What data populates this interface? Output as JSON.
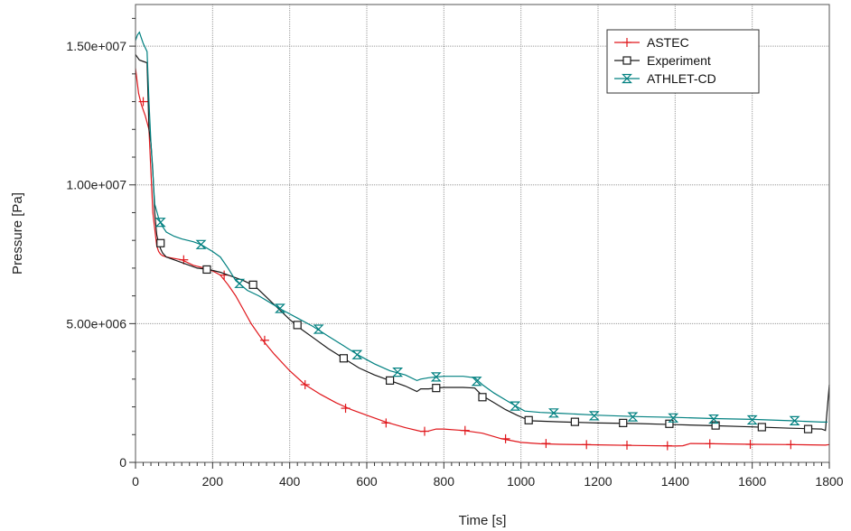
{
  "chart_data": {
    "type": "line",
    "xlabel": "Time [s]",
    "ylabel": "Pressure [Pa]",
    "xlim": [
      0,
      1800
    ],
    "ylim": [
      0,
      16500000
    ],
    "x_ticks": [
      0,
      200,
      400,
      600,
      800,
      1000,
      1200,
      1400,
      1600,
      1800
    ],
    "x_tick_labels": [
      "0",
      "200",
      "400",
      "600",
      "800",
      "1000",
      "1200",
      "1400",
      "1600",
      "1800"
    ],
    "y_ticks": [
      0,
      5000000,
      10000000,
      15000000
    ],
    "y_tick_labels": [
      "0",
      "5.00e+006",
      "1.00e+007",
      "1.50e+007"
    ],
    "grid": true,
    "legend_position": "top-right",
    "series": [
      {
        "name": "ASTEC",
        "color": "#e0161b",
        "marker": "plus",
        "x": [
          0,
          8,
          15,
          25,
          35,
          45,
          55,
          60,
          65,
          70,
          80,
          100,
          120,
          150,
          180,
          200,
          220,
          240,
          260,
          280,
          300,
          330,
          360,
          400,
          440,
          480,
          520,
          560,
          600,
          650,
          700,
          740,
          760,
          780,
          800,
          850,
          900,
          950,
          1000,
          1050,
          1100,
          1200,
          1300,
          1400,
          1420,
          1440,
          1500,
          1600,
          1700,
          1790,
          1800
        ],
        "y": [
          14200000,
          13300000,
          12900000,
          12500000,
          12000000,
          9000000,
          7800000,
          7600000,
          7500000,
          7450000,
          7400000,
          7350000,
          7300000,
          7100000,
          7000000,
          6900000,
          6750000,
          6400000,
          6000000,
          5500000,
          5000000,
          4400000,
          3900000,
          3300000,
          2800000,
          2450000,
          2150000,
          1900000,
          1700000,
          1450000,
          1250000,
          1120000,
          1130000,
          1200000,
          1200000,
          1150000,
          1050000,
          850000,
          720000,
          670000,
          650000,
          630000,
          610000,
          590000,
          600000,
          680000,
          670000,
          650000,
          640000,
          620000,
          640000
        ],
        "markers_x": [
          20,
          125,
          230,
          335,
          440,
          545,
          650,
          750,
          855,
          960,
          1065,
          1170,
          1275,
          1380,
          1490,
          1595,
          1700
        ],
        "markers_y": [
          13000000,
          7300000,
          6750000,
          4400000,
          2800000,
          1950000,
          1420000,
          1120000,
          1150000,
          850000,
          680000,
          640000,
          620000,
          600000,
          670000,
          650000,
          640000
        ]
      },
      {
        "name": "Experiment",
        "color": "#1a1a1a",
        "marker": "square",
        "x": [
          0,
          5,
          10,
          20,
          30,
          35,
          40,
          45,
          50,
          55,
          60,
          65,
          70,
          80,
          100,
          130,
          160,
          190,
          220,
          250,
          280,
          310,
          340,
          370,
          400,
          430,
          460,
          500,
          540,
          580,
          620,
          660,
          700,
          730,
          740,
          760,
          780,
          800,
          850,
          880,
          900,
          930,
          960,
          990,
          1010,
          1020,
          1100,
          1200,
          1300,
          1400,
          1500,
          1600,
          1700,
          1780,
          1790,
          1795,
          1800
        ],
        "y": [
          14700000,
          14600000,
          14500000,
          14450000,
          14400000,
          12000000,
          11500000,
          10500000,
          9000000,
          8200000,
          7900000,
          7700000,
          7550000,
          7400000,
          7300000,
          7150000,
          7000000,
          6950000,
          6850000,
          6700000,
          6550000,
          6350000,
          5950000,
          5550000,
          5150000,
          4800000,
          4500000,
          4100000,
          3750000,
          3400000,
          3150000,
          2950000,
          2750000,
          2550000,
          2650000,
          2650000,
          2680000,
          2700000,
          2700000,
          2680000,
          2400000,
          2150000,
          1900000,
          1700000,
          1580000,
          1500000,
          1460000,
          1420000,
          1400000,
          1360000,
          1320000,
          1280000,
          1230000,
          1200000,
          1150000,
          2000000,
          2800000
        ],
        "markers_x": [
          65,
          185,
          305,
          420,
          540,
          660,
          780,
          900,
          1020,
          1140,
          1265,
          1385,
          1505,
          1625,
          1745
        ],
        "markers_y": [
          7900000,
          6950000,
          6400000,
          4950000,
          3750000,
          2950000,
          2680000,
          2350000,
          1520000,
          1460000,
          1420000,
          1390000,
          1330000,
          1270000,
          1200000
        ]
      },
      {
        "name": "ATHLET-CD",
        "color": "#008080",
        "marker": "hourglass",
        "x": [
          0,
          5,
          10,
          15,
          20,
          30,
          35,
          40,
          50,
          60,
          65,
          70,
          80,
          100,
          120,
          150,
          170,
          200,
          220,
          240,
          260,
          290,
          320,
          350,
          380,
          420,
          460,
          500,
          540,
          580,
          620,
          660,
          700,
          730,
          740,
          760,
          780,
          800,
          850,
          880,
          900,
          930,
          960,
          990,
          1010,
          1050,
          1100,
          1200,
          1300,
          1400,
          1500,
          1600,
          1700,
          1780,
          1795
        ],
        "y": [
          15200000,
          15400000,
          15500000,
          15300000,
          15100000,
          14800000,
          13000000,
          11500000,
          9300000,
          8800000,
          8650000,
          8500000,
          8300000,
          8150000,
          8050000,
          7950000,
          7850000,
          7600000,
          7400000,
          7000000,
          6550000,
          6200000,
          6000000,
          5750000,
          5500000,
          5200000,
          4900000,
          4550000,
          4200000,
          3850000,
          3550000,
          3300000,
          3150000,
          2950000,
          3000000,
          3050000,
          3080000,
          3100000,
          3100000,
          3050000,
          2800000,
          2500000,
          2250000,
          2000000,
          1850000,
          1800000,
          1770000,
          1700000,
          1650000,
          1620000,
          1580000,
          1550000,
          1500000,
          1450000,
          1450000
        ],
        "markers_x": [
          65,
          170,
          270,
          375,
          475,
          575,
          680,
          780,
          885,
          985,
          1085,
          1190,
          1290,
          1395,
          1500,
          1600,
          1710
        ],
        "markers_y": [
          8650000,
          7850000,
          6450000,
          5550000,
          4800000,
          3880000,
          3250000,
          3080000,
          2920000,
          2030000,
          1780000,
          1680000,
          1640000,
          1600000,
          1560000,
          1530000,
          1500000
        ]
      }
    ]
  }
}
